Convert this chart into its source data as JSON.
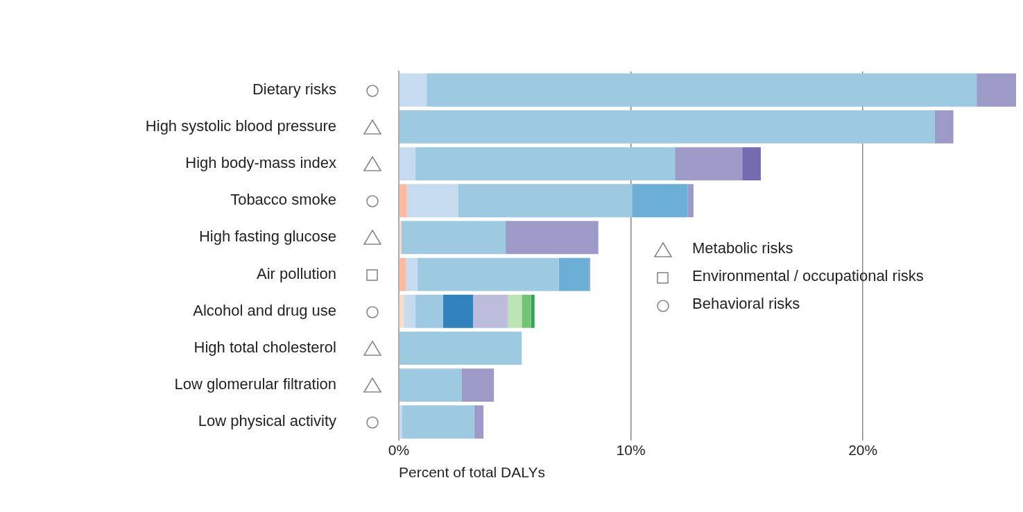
{
  "chart_data": {
    "type": "bar",
    "orientation": "horizontal",
    "stacked": true,
    "xlabel": "Percent of total DALYs",
    "categories": [
      "Dietary risks",
      "High systolic blood pressure",
      "High body-mass index",
      "Tobacco smoke",
      "High fasting glucose",
      "Air pollution",
      "Alcohol and drug use",
      "High total cholesterol",
      "Low glomerular filtration",
      "Low physical activity"
    ],
    "series": [
      {
        "color": "#fddbc7",
        "values": [
          0,
          0,
          0,
          0,
          0.1,
          0,
          0.2,
          0,
          0,
          0
        ]
      },
      {
        "color": "#fcbba1",
        "values": [
          0,
          0,
          0,
          0.35,
          0,
          0.3,
          0,
          0,
          0,
          0
        ]
      },
      {
        "color": "#c6dbef",
        "values": [
          1.2,
          0,
          0.7,
          2.2,
          0,
          0.5,
          0.5,
          0,
          0,
          0.15
        ]
      },
      {
        "color": "#9ecae1",
        "values": [
          23.7,
          23.1,
          11.2,
          7.5,
          4.5,
          6.1,
          1.2,
          5.3,
          2.7,
          3.1
        ]
      },
      {
        "color": "#3182bd",
        "values": [
          0,
          0,
          0,
          0,
          0,
          0,
          1.3,
          0,
          0,
          0
        ]
      },
      {
        "color": "#6baed6",
        "values": [
          0,
          0,
          0,
          2.4,
          0,
          1.3,
          0,
          0,
          0,
          0
        ]
      },
      {
        "color": "#bcbddc",
        "values": [
          0,
          0,
          0,
          0,
          0,
          0,
          1.5,
          0,
          0,
          0
        ]
      },
      {
        "color": "#9e9ac8",
        "values": [
          1.7,
          0.8,
          2.9,
          0.25,
          4.0,
          0.05,
          0,
          0,
          1.4,
          0.4
        ]
      },
      {
        "color": "#756bb1",
        "values": [
          0,
          0,
          0.8,
          0,
          0,
          0,
          0,
          0,
          0,
          0
        ]
      },
      {
        "color": "#bae4b3",
        "values": [
          0,
          0,
          0,
          0,
          0,
          0,
          0.6,
          0,
          0,
          0
        ]
      },
      {
        "color": "#74c476",
        "values": [
          0,
          0,
          0,
          0,
          0,
          0,
          0.4,
          0,
          0,
          0
        ]
      },
      {
        "color": "#31a354",
        "values": [
          0,
          0,
          0,
          0,
          0,
          0,
          0.15,
          0,
          0,
          0
        ]
      }
    ],
    "xlim": [
      0,
      26.6
    ],
    "xticks": [
      {
        "value": 0,
        "label": "0%"
      },
      {
        "value": 10,
        "label": "10%"
      },
      {
        "value": 20,
        "label": "20%"
      }
    ],
    "grid": "x",
    "legend": false,
    "annotations": [
      "Metabolic risks",
      "Environmental / occupational risks",
      "Behavioral risks"
    ]
  }
}
